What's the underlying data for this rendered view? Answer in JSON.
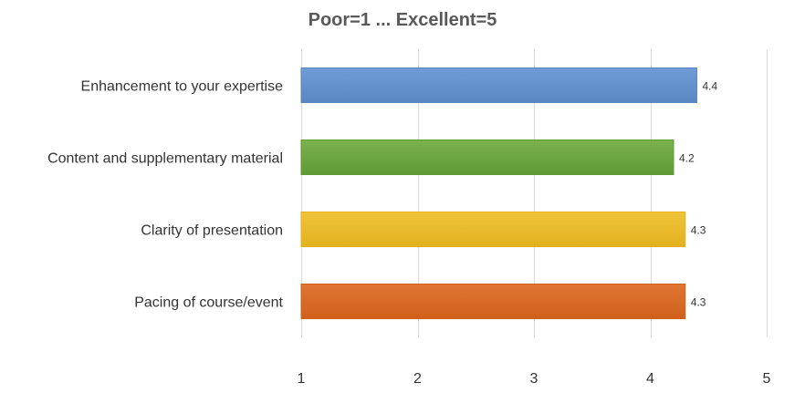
{
  "chart_data": {
    "type": "bar",
    "orientation": "horizontal",
    "title": "Poor=1 ... Excellent=5",
    "categories": [
      "Enhancement to your expertise",
      "Content and supplementary material",
      "Clarity of presentation",
      "Pacing of course/event"
    ],
    "values": [
      4.4,
      4.2,
      4.3,
      4.3
    ],
    "data_labels": [
      "4.4",
      "4.2",
      "4.3",
      "4.3"
    ],
    "bar_colors": [
      "#6f9bd6",
      "#7cb14f",
      "#f0c43a",
      "#df7633"
    ],
    "bar_colors_dark": [
      "#5a86c2",
      "#5f9a37",
      "#e3b120",
      "#d1601c"
    ],
    "xlim": [
      1,
      5
    ],
    "xticks": [
      1,
      2,
      3,
      4,
      5
    ],
    "xtick_labels": [
      "1",
      "2",
      "3",
      "4",
      "5"
    ],
    "grid": true,
    "legend": "none"
  }
}
